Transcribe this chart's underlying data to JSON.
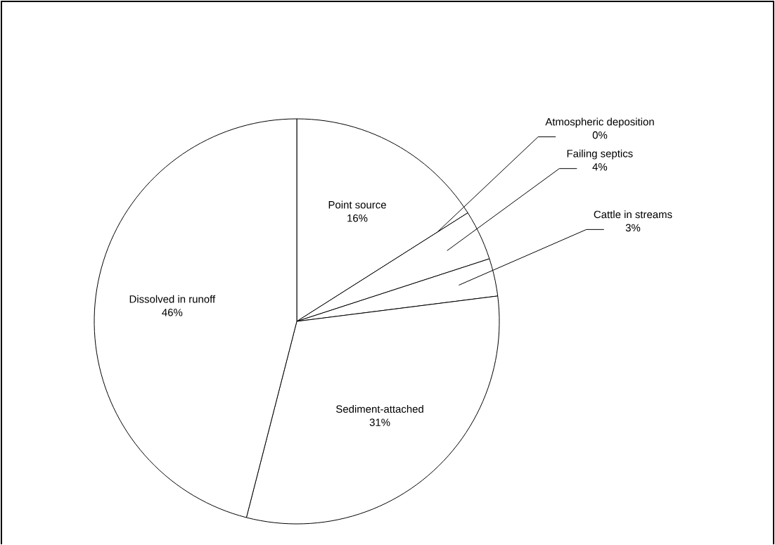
{
  "chart_data": {
    "type": "pie",
    "categories": [
      "Point source",
      "Atmospheric deposition",
      "Failing septics",
      "Cattle in streams",
      "Sediment-attached",
      "Dissolved in runoff"
    ],
    "values": [
      16,
      0,
      4,
      3,
      31,
      46
    ],
    "value_labels": [
      "16%",
      "0%",
      "4%",
      "3%",
      "31%",
      "46%"
    ],
    "colors": [
      "#ffffff",
      "#ffffff",
      "#ffffff",
      "#ffffff",
      "#ffffff",
      "#ffffff"
    ]
  }
}
